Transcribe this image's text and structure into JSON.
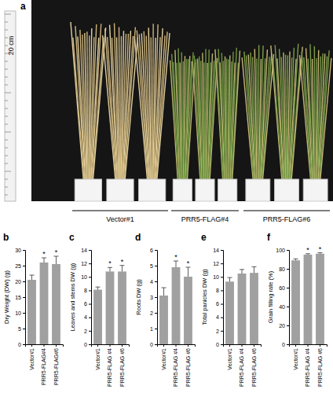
{
  "figure": {
    "panel": "a",
    "scale_label": "20 cm",
    "groups": [
      "Vector#1",
      "PRR5-FLAG#4",
      "PRR5-FLAG#6"
    ]
  },
  "chart_data": [
    {
      "type": "bar",
      "panel": "b",
      "y_label": "Dry Weight (DW) (g)",
      "categories": [
        "Vector#1",
        "PRR5-FLAG#4",
        "PRR5-FLAG#6"
      ],
      "values": [
        20.5,
        26,
        25.5
      ],
      "errors": [
        1.5,
        1.5,
        2.5
      ],
      "annotations": [
        null,
        "*",
        "*"
      ],
      "color": "#a0a0a0",
      "ylim": [
        0,
        30
      ],
      "yticks": [
        0,
        5,
        10,
        15,
        20,
        25,
        30
      ]
    },
    {
      "type": "bar",
      "panel": "c",
      "y_label": "Leaves and stems DW (g)",
      "categories": [
        "Vector#1",
        "PRR5-FLAG #4",
        "PRR5-FLAG #6"
      ],
      "values": [
        8.1,
        10.8,
        10.8
      ],
      "errors": [
        0.4,
        0.6,
        0.9
      ],
      "annotations": [
        null,
        "*",
        "*"
      ],
      "color": "#a0a0a0",
      "ylim": [
        0,
        14
      ],
      "yticks": [
        0,
        2,
        4,
        6,
        8,
        10,
        12,
        14
      ]
    },
    {
      "type": "bar",
      "panel": "d",
      "y_label": "Roots DW (g)",
      "categories": [
        "Vector#1",
        "PRR5-FLAG #4",
        "PRR5-FLAG #6"
      ],
      "values": [
        3.1,
        4.9,
        4.3
      ],
      "errors": [
        0.5,
        0.4,
        0.6
      ],
      "annotations": [
        null,
        "*",
        "*"
      ],
      "color": "#a0a0a0",
      "ylim": [
        0,
        6
      ],
      "yticks": [
        0,
        1,
        2,
        3,
        4,
        5,
        6
      ]
    },
    {
      "type": "bar",
      "panel": "e",
      "y_label": "Total panicles DW (g)",
      "categories": [
        "Vector#1",
        "PRR5-FLAG #4",
        "PRR5-FLAG #6"
      ],
      "values": [
        9.3,
        10.5,
        10.6
      ],
      "errors": [
        0.6,
        0.6,
        0.9
      ],
      "color": "#a0a0a0",
      "ylim": [
        0,
        14
      ],
      "yticks": [
        0,
        2,
        4,
        6,
        8,
        10,
        12,
        14
      ]
    },
    {
      "type": "bar",
      "panel": "f",
      "y_label": "Grain filling rate (%)",
      "categories": [
        "Vector#1",
        "PRR5-FLAG #4",
        "PRR5-FLAG #6"
      ],
      "values": [
        89,
        95,
        96
      ],
      "errors": [
        1.5,
        1,
        1
      ],
      "annotations": [
        null,
        "*",
        "*"
      ],
      "color": "#a0a0a0",
      "ylim": [
        0,
        100
      ],
      "yticks": [
        0,
        20,
        40,
        60,
        80,
        100
      ]
    }
  ]
}
